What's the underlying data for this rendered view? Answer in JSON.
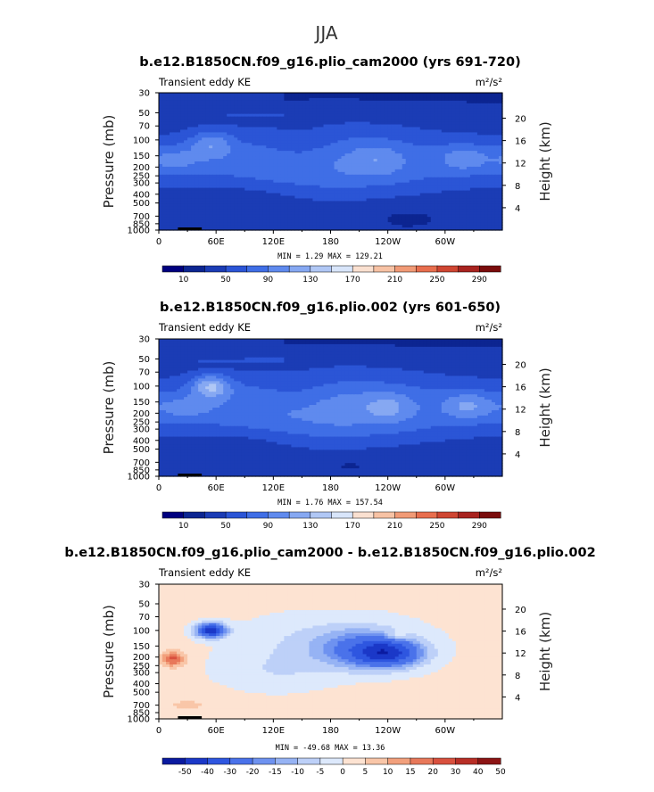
{
  "figure": {
    "super_title": "JJA",
    "colors": {
      "seq": [
        "#00007f",
        "#0c2591",
        "#1b3cb5",
        "#2b55d6",
        "#3f6ee6",
        "#5f8aee",
        "#86a8f2",
        "#b0c7f5",
        "#d8e5fa",
        "#fae0d0",
        "#f7c2a4",
        "#f19a76",
        "#e86e4e",
        "#cf4632",
        "#a8231f",
        "#7a0c0c"
      ],
      "div": [
        "#0a1aa0",
        "#1b38c8",
        "#2e56e0",
        "#4a72ea",
        "#6e92f0",
        "#96b3f4",
        "#bdd0f8",
        "#dde9fc",
        "#fde3d2",
        "#f9c6a8",
        "#f2a07c",
        "#e8785a",
        "#d9503e",
        "#b82e26",
        "#8c1414"
      ]
    }
  },
  "chart_data": [
    {
      "type": "heatmap",
      "title": "b.e12.B1850CN.f09_g16.plio_cam2000 (yrs 691-720)",
      "left_label": "Transient eddy KE",
      "units_label": "m²/s²",
      "ylabel": "Pressure (mb)",
      "ylabel_right": "Height (km)",
      "x_ticks": [
        "0",
        "60E",
        "120E",
        "180",
        "120W",
        "60W"
      ],
      "y_ticks": [
        "30",
        "50",
        "70",
        "100",
        "150",
        "200",
        "250",
        "300",
        "400",
        "500",
        "700",
        "850",
        "1000"
      ],
      "right_ticks": [
        "20",
        "16",
        "12",
        "8",
        "4"
      ],
      "minmax": "MIN =    1.29   MAX =  129.21",
      "colorbar_labels": [
        "10",
        "50",
        "90",
        "130",
        "170",
        "210",
        "250",
        "290"
      ],
      "levels": [
        10,
        30,
        50,
        70,
        90,
        110,
        130,
        150,
        170,
        190,
        210,
        230,
        250,
        270,
        290
      ],
      "value_range": [
        1.29,
        129.21
      ],
      "colormap": "seq",
      "field": "mean1"
    },
    {
      "type": "heatmap",
      "title": "b.e12.B1850CN.f09_g16.plio.002 (yrs 601-650)",
      "left_label": "Transient eddy KE",
      "units_label": "m²/s²",
      "ylabel": "Pressure (mb)",
      "ylabel_right": "Height (km)",
      "x_ticks": [
        "0",
        "60E",
        "120E",
        "180",
        "120W",
        "60W"
      ],
      "y_ticks": [
        "30",
        "50",
        "70",
        "100",
        "150",
        "200",
        "250",
        "300",
        "400",
        "500",
        "700",
        "850",
        "1000"
      ],
      "right_ticks": [
        "20",
        "16",
        "12",
        "8",
        "4"
      ],
      "minmax": "MIN =    1.76   MAX =  157.54",
      "colorbar_labels": [
        "10",
        "50",
        "90",
        "130",
        "170",
        "210",
        "250",
        "290"
      ],
      "levels": [
        10,
        30,
        50,
        70,
        90,
        110,
        130,
        150,
        170,
        190,
        210,
        230,
        250,
        270,
        290
      ],
      "value_range": [
        1.76,
        157.54
      ],
      "colormap": "seq",
      "field": "mean2"
    },
    {
      "type": "heatmap",
      "title": "b.e12.B1850CN.f09_g16.plio_cam2000 - b.e12.B1850CN.f09_g16.plio.002",
      "left_label": "Transient eddy KE",
      "units_label": "m²/s²",
      "ylabel": "Pressure (mb)",
      "ylabel_right": "Height (km)",
      "x_ticks": [
        "0",
        "60E",
        "120E",
        "180",
        "120W",
        "60W"
      ],
      "y_ticks": [
        "30",
        "50",
        "70",
        "100",
        "150",
        "200",
        "250",
        "300",
        "400",
        "500",
        "700",
        "850",
        "1000"
      ],
      "right_ticks": [
        "20",
        "16",
        "12",
        "8",
        "4"
      ],
      "minmax": "MIN =  -49.68   MAX =   13.36",
      "colorbar_labels": [
        "-50",
        "-40",
        "-30",
        "-20",
        "-15",
        "-10",
        "-5",
        "0",
        "5",
        "10",
        "15",
        "20",
        "30",
        "40",
        "50"
      ],
      "levels": [
        -50,
        -40,
        -30,
        -20,
        -15,
        -10,
        -5,
        0,
        5,
        10,
        15,
        20,
        30,
        40
      ],
      "value_range": [
        -49.68,
        13.36
      ],
      "colormap": "div",
      "field": "diff"
    }
  ]
}
